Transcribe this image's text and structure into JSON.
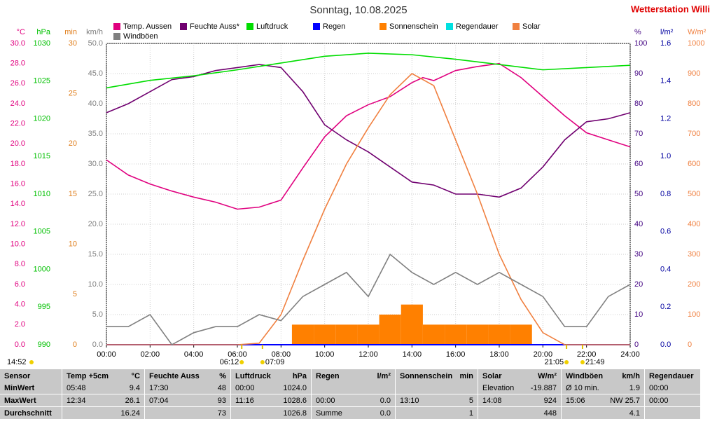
{
  "chart_data": {
    "type": "line",
    "title": "Sonntag, 10.08.2025",
    "station": "Wetterstation Willi",
    "xlim": [
      0,
      24
    ],
    "xticks": [
      {
        "value": 0,
        "label": "00:00"
      },
      {
        "value": 2,
        "label": "02:00"
      },
      {
        "value": 4,
        "label": "04:00"
      },
      {
        "value": 6,
        "label": "06:00"
      },
      {
        "value": 8,
        "label": "08:00"
      },
      {
        "value": 10,
        "label": "10:00"
      },
      {
        "value": 12,
        "label": "12:00"
      },
      {
        "value": 14,
        "label": "14:00"
      },
      {
        "value": 16,
        "label": "16:00"
      },
      {
        "value": 18,
        "label": "18:00"
      },
      {
        "value": 20,
        "label": "20:00"
      },
      {
        "value": 22,
        "label": "22:00"
      },
      {
        "value": 24,
        "label": "24:00"
      }
    ],
    "grid": true,
    "axes": [
      {
        "unit": "°C",
        "side": "left",
        "color": "#e0007f",
        "lim": [
          0,
          30
        ],
        "ticks": [
          {
            "value": 0,
            "label": "0.0"
          },
          {
            "value": 2,
            "label": "2.0"
          },
          {
            "value": 4,
            "label": "4.0"
          },
          {
            "value": 6,
            "label": "6.0"
          },
          {
            "value": 8,
            "label": "8.0"
          },
          {
            "value": 10,
            "label": "10.0"
          },
          {
            "value": 12,
            "label": "12.0"
          },
          {
            "value": 14,
            "label": "14.0"
          },
          {
            "value": 16,
            "label": "16.0"
          },
          {
            "value": 18,
            "label": "18.0"
          },
          {
            "value": 20,
            "label": "20.0"
          },
          {
            "value": 22,
            "label": "22.0"
          },
          {
            "value": 24,
            "label": "24.0"
          },
          {
            "value": 26,
            "label": "26.0"
          },
          {
            "value": 28,
            "label": "28.0"
          },
          {
            "value": 30,
            "label": "30.0"
          }
        ]
      },
      {
        "unit": "hPa",
        "side": "left",
        "color": "#00c000",
        "lim": [
          990,
          1030
        ],
        "ticks": [
          990,
          995,
          1000,
          1005,
          1010,
          1015,
          1020,
          1025,
          1030
        ]
      },
      {
        "unit": "min",
        "side": "left",
        "color": "#e08020",
        "lim": [
          0,
          30
        ],
        "ticks": [
          0,
          5,
          10,
          15,
          20,
          25,
          30
        ]
      },
      {
        "unit": "km/h",
        "side": "left",
        "color": "#808080",
        "lim": [
          0,
          50
        ],
        "ticks": [
          {
            "value": 0,
            "label": "0.0"
          },
          {
            "value": 5,
            "label": "5.0"
          },
          {
            "value": 10,
            "label": "10.0"
          },
          {
            "value": 15,
            "label": "15.0"
          },
          {
            "value": 20,
            "label": "20.0"
          },
          {
            "value": 25,
            "label": "25.0"
          },
          {
            "value": 30,
            "label": "30.0"
          },
          {
            "value": 35,
            "label": "35.0"
          },
          {
            "value": 40,
            "label": "40.0"
          },
          {
            "value": 45,
            "label": "45.0"
          },
          {
            "value": 50,
            "label": "50.0"
          }
        ]
      },
      {
        "unit": "%",
        "side": "right",
        "color": "#400080",
        "lim": [
          0,
          100
        ],
        "ticks": [
          0,
          10,
          20,
          30,
          40,
          50,
          60,
          70,
          80,
          90,
          100
        ]
      },
      {
        "unit": "l/m²",
        "side": "right",
        "color": "#0000a0",
        "lim": [
          0,
          1.6
        ],
        "ticks": [
          {
            "value": 0,
            "label": "0.0"
          },
          0.2,
          0.4,
          0.6,
          0.8,
          {
            "value": 1,
            "label": "1.0"
          },
          1.2,
          1.4,
          1.6
        ]
      },
      {
        "unit": "W/m²",
        "side": "right",
        "color": "#f08040",
        "lim": [
          0,
          1000
        ],
        "ticks": [
          0,
          100,
          200,
          300,
          400,
          500,
          600,
          700,
          800,
          900,
          1000
        ]
      }
    ],
    "series": [
      {
        "name": "Temp. Aussen",
        "color": "#e0007f",
        "axis": "°C",
        "style": "line",
        "x": [
          0,
          1,
          2,
          3,
          4,
          5,
          6,
          7,
          8,
          9,
          10,
          11,
          12,
          13,
          14,
          14.5,
          15,
          16,
          17,
          18,
          19,
          20,
          21,
          22,
          23,
          24
        ],
        "values": [
          18.4,
          16.9,
          16.0,
          15.3,
          14.7,
          14.2,
          13.5,
          13.7,
          14.4,
          17.6,
          20.7,
          22.8,
          23.9,
          24.7,
          26.1,
          26.6,
          26.3,
          27.3,
          27.7,
          28.0,
          26.6,
          24.7,
          22.8,
          21.1,
          20.4,
          19.7
        ]
      },
      {
        "name": "Feuchte Auss*",
        "color": "#700070",
        "axis": "%",
        "style": "line",
        "x": [
          0,
          1,
          2,
          3,
          4,
          5,
          6,
          7,
          8,
          9,
          10,
          11,
          12,
          13,
          14,
          15,
          16,
          17,
          18,
          19,
          20,
          21,
          22,
          23,
          24
        ],
        "values": [
          77,
          80,
          84,
          88,
          89,
          91,
          92,
          93,
          92,
          84,
          73,
          68,
          64,
          59,
          54,
          53,
          50,
          50,
          49,
          52,
          59,
          68,
          74,
          75,
          77
        ]
      },
      {
        "name": "Luftdruck",
        "color": "#00dd00",
        "axis": "hPa",
        "style": "line",
        "x": [
          0,
          2,
          4,
          6,
          8,
          10,
          12,
          14,
          16,
          18,
          20,
          22,
          24
        ],
        "values": [
          1024.1,
          1025.1,
          1025.7,
          1026.5,
          1027.4,
          1028.3,
          1028.7,
          1028.5,
          1027.9,
          1027.2,
          1026.5,
          1026.8,
          1027.1
        ]
      },
      {
        "name": "Regen",
        "color": "#0000ff",
        "axis": "l/m²",
        "style": "line",
        "x": [
          0,
          24
        ],
        "values": [
          0,
          0
        ]
      },
      {
        "name": "Sonnenschein",
        "color": "#ff8000",
        "axis": "min",
        "style": "bar",
        "x": [
          9,
          10,
          11,
          12,
          13,
          14,
          15,
          16,
          17,
          18,
          19
        ],
        "values": [
          2,
          2,
          2,
          2,
          3,
          4,
          2,
          2,
          2,
          2,
          2
        ]
      },
      {
        "name": "Regendauer",
        "color": "#00e0e0",
        "axis": "min",
        "style": "line",
        "x": [],
        "values": []
      },
      {
        "name": "Solar",
        "color": "#f08040",
        "axis": "W/m²",
        "style": "line",
        "x": [
          0,
          6,
          7,
          8,
          9,
          10,
          11,
          12,
          13,
          14,
          15,
          16,
          17,
          18,
          19,
          20,
          21,
          24
        ],
        "values": [
          0,
          0,
          5,
          100,
          280,
          450,
          600,
          720,
          830,
          900,
          860,
          680,
          500,
          300,
          150,
          40,
          0,
          0
        ]
      },
      {
        "name": "Windböen",
        "color": "#808080",
        "axis": "km/h",
        "style": "line",
        "x": [
          0,
          1,
          2,
          3,
          4,
          5,
          6,
          7,
          8,
          9,
          10,
          11,
          12,
          13,
          14,
          15,
          16,
          17,
          18,
          19,
          20,
          21,
          22,
          23,
          24
        ],
        "values": [
          3,
          3,
          5,
          0,
          2,
          3,
          3,
          5,
          4,
          8,
          10,
          12,
          8,
          15,
          12,
          10,
          12,
          10,
          12,
          10,
          8,
          3,
          3,
          8,
          10
        ]
      }
    ],
    "time_at_left": "14:52",
    "sun_times": [
      {
        "x": 6.2,
        "label": "06:12"
      },
      {
        "x": 7.15,
        "label": "07:09"
      },
      {
        "x": 21.0833,
        "label": "21:05"
      },
      {
        "x": 21.8167,
        "label": "21:49"
      }
    ]
  },
  "table": {
    "headers": [
      {
        "label": "Sensor",
        "unit": null
      },
      {
        "label": "Temp +5cm",
        "unit": "°C"
      },
      {
        "label": "Feuchte Auss",
        "unit": "%"
      },
      {
        "label": "Luftdruck",
        "unit": "hPa"
      },
      {
        "label": "Regen",
        "unit": "l/m²"
      },
      {
        "label": "Sonnenschein",
        "unit": "min"
      },
      {
        "label": "Solar",
        "unit": "W/m²"
      },
      {
        "label": "Windböen",
        "unit": "km/h"
      },
      {
        "label": "Regendauer",
        "unit": null
      }
    ],
    "rows": [
      {
        "label": "MinWert",
        "cells": [
          [
            "05:48",
            "9.4"
          ],
          [
            "17:30",
            "48"
          ],
          [
            "00:00",
            "1024.0"
          ],
          [
            null,
            null
          ],
          [
            null,
            null
          ],
          [
            "Elevation",
            "-19.887"
          ],
          [
            "Ø 10 min.",
            "1.9"
          ],
          [
            "00:00",
            null
          ]
        ]
      },
      {
        "label": "MaxWert",
        "cells": [
          [
            "12:34",
            "26.1"
          ],
          [
            "07:04",
            "93"
          ],
          [
            "11:16",
            "1028.6"
          ],
          [
            "00:00",
            "0.0"
          ],
          [
            "13:10",
            "5"
          ],
          [
            "14:08",
            "924"
          ],
          [
            "15:06",
            "NW 25.7"
          ],
          [
            "00:00",
            null
          ]
        ]
      },
      {
        "label": "Durchschnitt",
        "cells": [
          [
            null,
            "16.24"
          ],
          [
            null,
            "73"
          ],
          [
            null,
            "1026.8"
          ],
          [
            "Summe",
            "0.0"
          ],
          [
            null,
            "1"
          ],
          [
            null,
            "448"
          ],
          [
            null,
            "4.1"
          ],
          [
            null,
            null
          ]
        ]
      }
    ]
  }
}
